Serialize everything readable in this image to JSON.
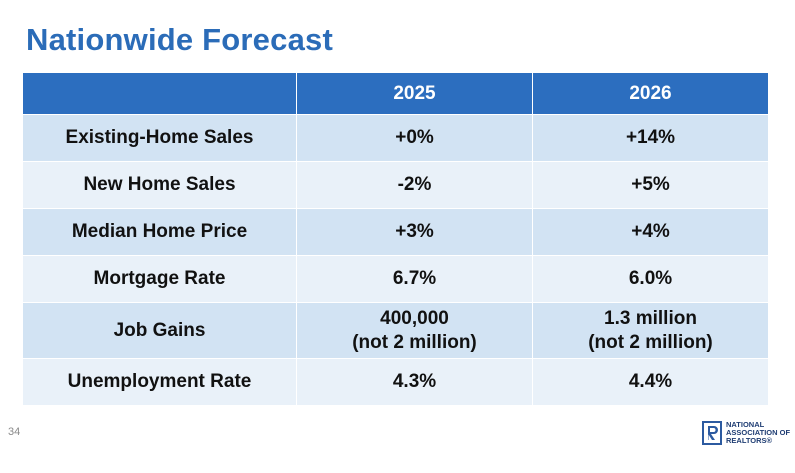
{
  "title": "Nationwide Forecast",
  "table": {
    "headers": [
      "",
      "2025",
      "2026"
    ],
    "rows": [
      {
        "label": "Existing-Home Sales",
        "y2025": "+0%",
        "y2026": "+14%"
      },
      {
        "label": "New Home Sales",
        "y2025": "-2%",
        "y2026": "+5%"
      },
      {
        "label": "Median Home Price",
        "y2025": "+3%",
        "y2026": "+4%"
      },
      {
        "label": "Mortgage Rate",
        "y2025": "6.7%",
        "y2026": "6.0%"
      },
      {
        "label": "Job Gains",
        "y2025": "400,000",
        "y2025_note": "(not 2 million)",
        "y2026": "1.3 million",
        "y2026_note": "(not 2 million)"
      },
      {
        "label": "Unemployment Rate",
        "y2025": "4.3%",
        "y2026": "4.4%"
      }
    ]
  },
  "page_number": "34",
  "logo": {
    "line1": "NATIONAL",
    "line2": "ASSOCIATION OF",
    "line3": "REALTORS®"
  },
  "colors": {
    "title": "#2b6cb8",
    "header_bg": "#2c6ebf",
    "row_dark": "#d2e3f3",
    "row_light": "#e9f1f9"
  }
}
